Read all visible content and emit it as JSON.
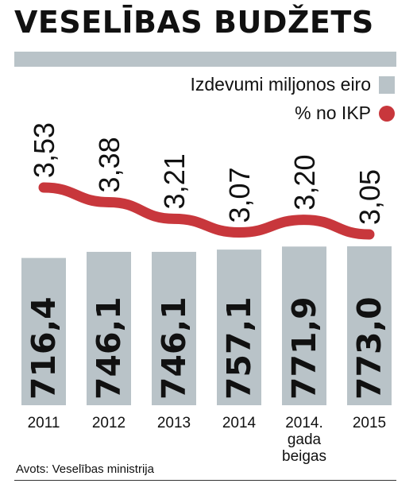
{
  "title": "VESELĪBAS BUDŽETS",
  "legend": [
    {
      "label": "Izdevumi miljonos eiro",
      "color": "#b9c3c8"
    },
    {
      "label": "% no IKP",
      "color": "#c8373c"
    }
  ],
  "source": "Avots: Veselības ministrija",
  "chart_data": {
    "type": "bar",
    "categories": [
      "2011",
      "2012",
      "2013",
      "2014",
      "2014. gada beigas",
      "2015"
    ],
    "category_lines": [
      [
        "2011"
      ],
      [
        "2012"
      ],
      [
        "2013"
      ],
      [
        "2014"
      ],
      [
        "2014.",
        "gada",
        "beigas"
      ],
      [
        "2015"
      ]
    ],
    "series": [
      {
        "name": "Izdevumi miljonos eiro",
        "type": "bar",
        "color": "#b9c3c8",
        "values": [
          716.4,
          746.1,
          746.1,
          757.1,
          771.9,
          773.0
        ],
        "labels": [
          "716,4",
          "746,1",
          "746,1",
          "757,1",
          "771,9",
          "773,0"
        ]
      },
      {
        "name": "% no IKP",
        "type": "line",
        "color": "#c8373c",
        "values": [
          3.53,
          3.38,
          3.21,
          3.07,
          3.2,
          3.05
        ],
        "labels": [
          "3,53",
          "3,38",
          "3,21",
          "3,07",
          "3,20",
          "3,05"
        ]
      }
    ]
  }
}
